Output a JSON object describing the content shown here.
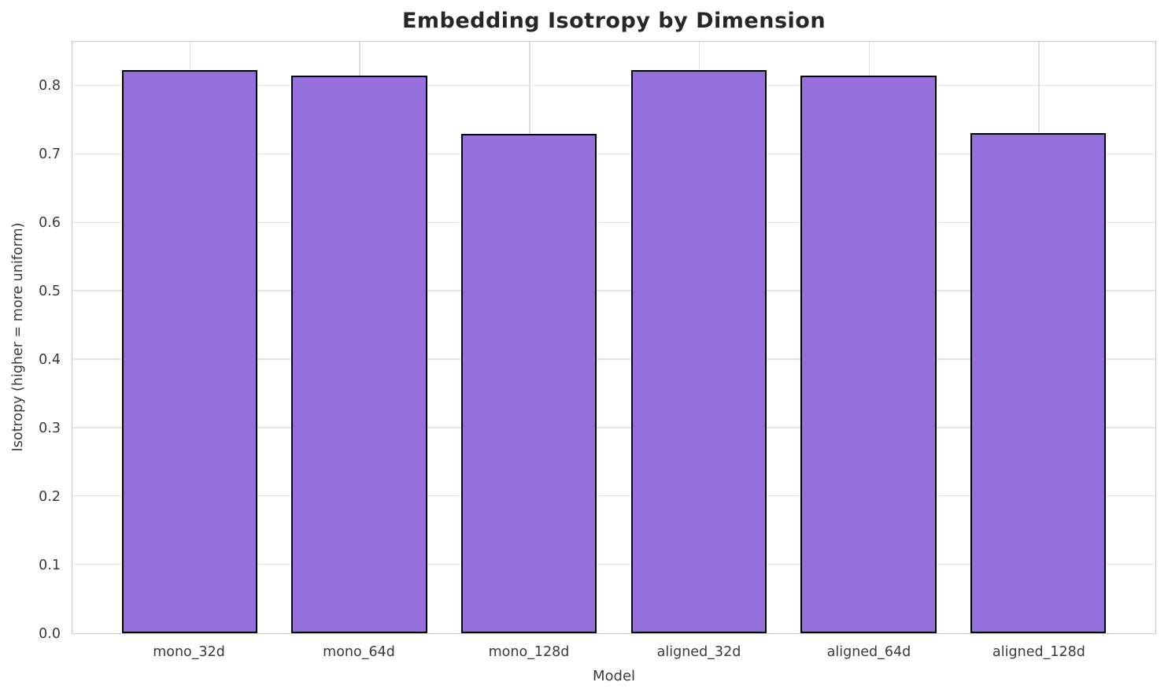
{
  "chart_data": {
    "type": "bar",
    "title": "Embedding Isotropy by Dimension",
    "xlabel": "Model",
    "ylabel": "Isotropy (higher = more uniform)",
    "categories": [
      "mono_32d",
      "mono_64d",
      "mono_128d",
      "aligned_32d",
      "aligned_64d",
      "aligned_128d"
    ],
    "values": [
      0.823,
      0.815,
      0.73,
      0.823,
      0.815,
      0.731
    ],
    "yticks": [
      0.0,
      0.1,
      0.2,
      0.3,
      0.4,
      0.5,
      0.6,
      0.7,
      0.8
    ],
    "ylim": [
      0,
      0.865
    ],
    "grid": true,
    "legend": "none",
    "bar_color": "#9370DB",
    "bar_edge_color": "#000000",
    "gridline_color": "#e5e5e5",
    "border_color": "#c8c8c8",
    "title_color": "#262626",
    "tick_color": "#3a3a3a"
  }
}
